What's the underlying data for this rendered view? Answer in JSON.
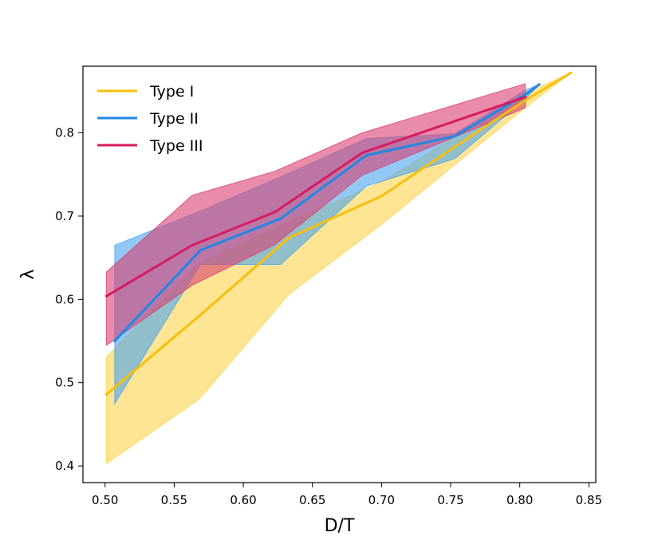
{
  "chart_data": {
    "type": "line",
    "xlabel": "D/T",
    "ylabel": "λ",
    "xlim": [
      0.484,
      0.855
    ],
    "ylim": [
      0.38,
      0.88
    ],
    "xticks": [
      0.5,
      0.55,
      0.6,
      0.65,
      0.7,
      0.75,
      0.8,
      0.85
    ],
    "xtick_labels": [
      "0.50",
      "0.55",
      "0.60",
      "0.65",
      "0.70",
      "0.75",
      "0.80",
      "0.85"
    ],
    "yticks": [
      0.4,
      0.5,
      0.6,
      0.7,
      0.8
    ],
    "ytick_labels": [
      "0.4",
      "0.5",
      "0.6",
      "0.7",
      "0.8"
    ],
    "grid": false,
    "legend_position": "top-left",
    "series": [
      {
        "name": "Type I",
        "color": "#f7bf0b",
        "fill_color": "#fcd34d",
        "x": [
          0.501,
          0.568,
          0.633,
          0.7,
          0.751,
          0.803,
          0.837
        ],
        "y": [
          0.486,
          0.58,
          0.674,
          0.724,
          0.781,
          0.838,
          0.872
        ],
        "lower": [
          0.403,
          0.48,
          0.606,
          0.69,
          0.759,
          0.829,
          0.872
        ],
        "upper": [
          0.531,
          0.643,
          0.693,
          0.741,
          0.793,
          0.847,
          0.872
        ]
      },
      {
        "name": "Type II",
        "color": "#1e88e5",
        "fill_color": "#4aa3f0",
        "x": [
          0.507,
          0.569,
          0.627,
          0.689,
          0.753,
          0.805,
          0.814
        ],
        "y": [
          0.55,
          0.659,
          0.697,
          0.773,
          0.796,
          0.847,
          0.858
        ],
        "lower": [
          0.475,
          0.642,
          0.642,
          0.736,
          0.769,
          0.842,
          0.858
        ],
        "upper": [
          0.665,
          0.706,
          0.747,
          0.793,
          0.799,
          0.852,
          0.858
        ]
      },
      {
        "name": "Type III",
        "color": "#d81b60",
        "fill_color": "#d9406f",
        "x": [
          0.501,
          0.563,
          0.623,
          0.686,
          0.804
        ],
        "y": [
          0.604,
          0.665,
          0.705,
          0.776,
          0.843
        ],
        "lower": [
          0.545,
          0.617,
          0.666,
          0.749,
          0.83
        ],
        "upper": [
          0.633,
          0.725,
          0.754,
          0.8,
          0.859
        ]
      }
    ]
  }
}
